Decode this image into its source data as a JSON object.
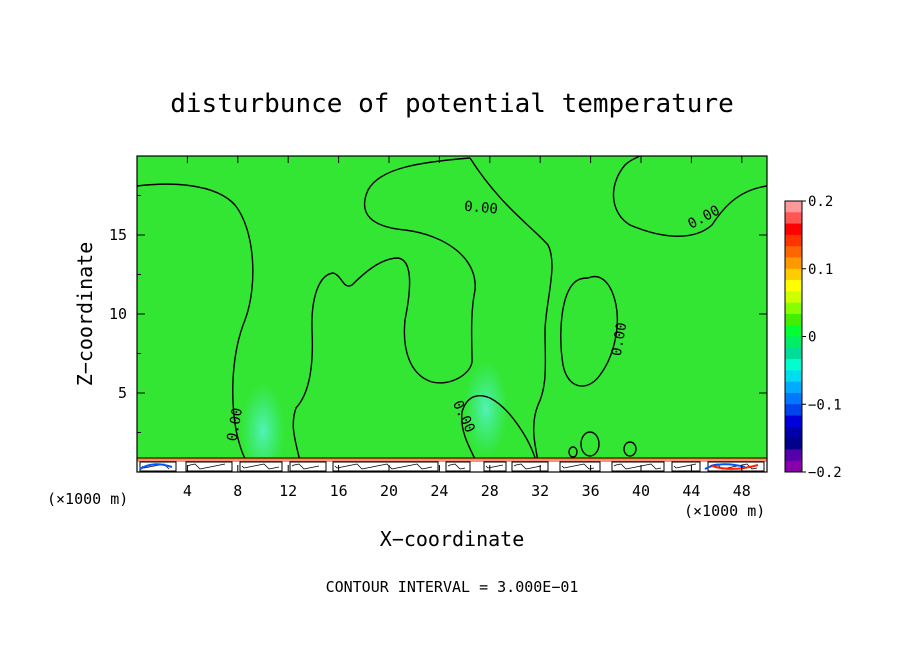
{
  "chart_data": {
    "type": "heatmap",
    "title": "disturbunce of potential temperature",
    "xlabel": "X−coordinate",
    "ylabel": "Z−coordinate",
    "x_unit_left": "(×1000 m)",
    "x_unit_right": "(×1000 m)",
    "footer": "CONTOUR INTERVAL = 3.000E−01",
    "xlim": [
      0,
      50
    ],
    "ylim": [
      0,
      20
    ],
    "x_ticks": [
      4,
      8,
      12,
      16,
      20,
      24,
      28,
      32,
      36,
      40,
      44,
      48
    ],
    "x_tick_labels": [
      "4",
      "8",
      "12",
      "16",
      "20",
      "24",
      "28",
      "32",
      "36",
      "40",
      "44",
      "48"
    ],
    "y_ticks": [
      5,
      10,
      15
    ],
    "y_tick_labels": [
      "5",
      "10",
      "15"
    ],
    "background_value": 0.0,
    "contour_labels": [
      {
        "text": "0.00",
        "x": 7.8,
        "z": 3.0,
        "angle": -80
      },
      {
        "text": "0.00",
        "x": 25.9,
        "z": 3.5,
        "angle": 65
      },
      {
        "text": "0.00",
        "x": 27.3,
        "z": 16.7,
        "angle": 5
      },
      {
        "text": "0.00",
        "x": 38.3,
        "z": 8.4,
        "angle": -80
      },
      {
        "text": "0.00",
        "x": 45.0,
        "z": 16.1,
        "angle": -28
      }
    ],
    "anomalies": [
      {
        "x": 10.0,
        "z": 2.6,
        "value": -0.05
      },
      {
        "x": 27.7,
        "z": 4.0,
        "value": -0.05
      }
    ],
    "colorbar": {
      "min": -0.2,
      "max": 0.2,
      "tick_values": [
        0.2,
        0.1,
        0,
        -0.1,
        -0.2
      ],
      "tick_labels": [
        "0.2",
        "0.1",
        "0",
        "−0.1",
        "−0.2"
      ],
      "colors": [
        "#FF9999",
        "#FF5555",
        "#FF0000",
        "#FF3300",
        "#FF6600",
        "#FF9900",
        "#FFCC00",
        "#FFFF00",
        "#CCFF00",
        "#88FF00",
        "#44EE00",
        "#00FF33",
        "#00EE66",
        "#00DD99",
        "#00FFCC",
        "#00DDEE",
        "#00AAFF",
        "#0077FF",
        "#0044EE",
        "#0000DD",
        "#0000AA",
        "#000088",
        "#5500AA",
        "#8800AA"
      ]
    },
    "colors": {
      "field": "#33E633",
      "anomaly": "#40F0A6",
      "contour": "#000000"
    }
  }
}
